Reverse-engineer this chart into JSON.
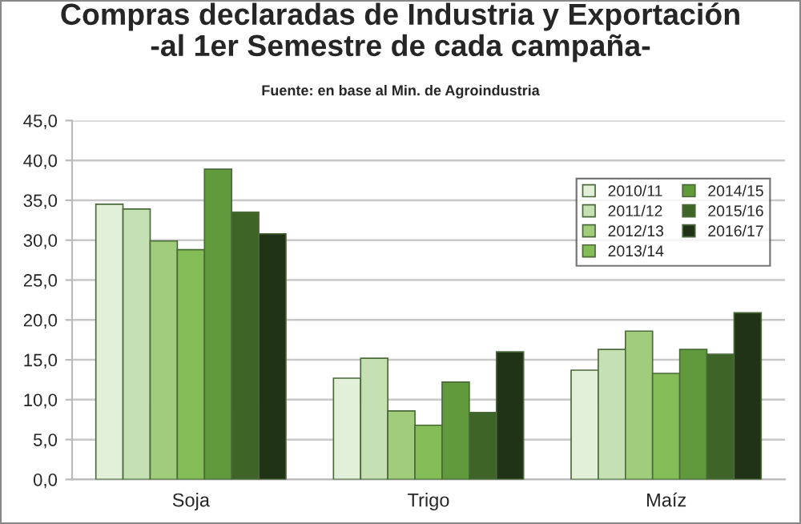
{
  "chart_data": {
    "type": "bar",
    "title": "Compras declaradas de Industria y Exportación\n-al 1er Semestre de cada campaña-",
    "subtitle": "Fuente: en base al Min. de Agroindustria",
    "categories": [
      "Soja",
      "Trigo",
      "Maíz"
    ],
    "series": [
      {
        "name": "2010/11",
        "color": "#e2efd9",
        "values": [
          34.5,
          12.7,
          13.7
        ]
      },
      {
        "name": "2011/12",
        "color": "#c5e0b3",
        "values": [
          33.9,
          15.2,
          16.3
        ]
      },
      {
        "name": "2012/13",
        "color": "#a0cc7c",
        "values": [
          29.9,
          8.6,
          18.6
        ]
      },
      {
        "name": "2013/14",
        "color": "#84bd58",
        "values": [
          28.8,
          6.8,
          13.3
        ]
      },
      {
        "name": "2014/15",
        "color": "#619a3c",
        "values": [
          38.9,
          12.2,
          16.3
        ]
      },
      {
        "name": "2015/16",
        "color": "#3e6428",
        "values": [
          33.5,
          8.4,
          15.7
        ]
      },
      {
        "name": "2016/17",
        "color": "#213316",
        "values": [
          30.8,
          16.0,
          20.9
        ]
      }
    ],
    "ylim": [
      0,
      45
    ],
    "yticks": [
      {
        "value": 0,
        "label": "0,0"
      },
      {
        "value": 5,
        "label": "5,0"
      },
      {
        "value": 10,
        "label": "10,0"
      },
      {
        "value": 15,
        "label": "15,0"
      },
      {
        "value": 20,
        "label": "20,0"
      },
      {
        "value": 25,
        "label": "25,0"
      },
      {
        "value": 30,
        "label": "30,0"
      },
      {
        "value": 35,
        "label": "35,0"
      },
      {
        "value": 40,
        "label": "40,0"
      },
      {
        "value": 45,
        "label": "45,0"
      }
    ],
    "grid": "y",
    "legend": "top right"
  }
}
